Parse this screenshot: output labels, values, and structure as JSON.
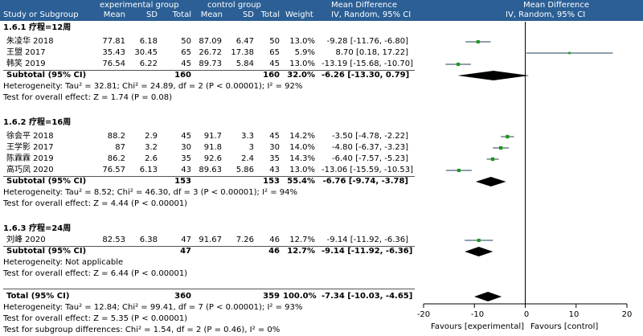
{
  "header": {
    "col_study": "Study or Subgroup",
    "exp_group": "experimental group",
    "ctrl_group": "control group",
    "mean": "Mean",
    "sd": "SD",
    "total": "Total",
    "weight": "Weight",
    "md_title": "Mean Difference",
    "md_sub": "IV, Random, 95% CI",
    "md_title2": "Mean Difference",
    "md_sub2": "IV, Random, 95% CI"
  },
  "groups": [
    {
      "title": "1.6.1 疗程=12周",
      "rows": [
        {
          "study": "朱凌华 2018",
          "em": "77.81",
          "esd": "6.18",
          "et": "50",
          "cm": "87.09",
          "csd": "6.47",
          "ct": "50",
          "w": "13.0%",
          "ci": "-9.28 [-11.76, -6.80]"
        },
        {
          "study": "王盟 2017",
          "em": "35.43",
          "esd": "30.45",
          "et": "65",
          "cm": "26.72",
          "csd": "17.38",
          "ct": "65",
          "w": "5.9%",
          "ci": "8.70 [0.18, 17.22]"
        },
        {
          "study": "韩笑 2019",
          "em": "76.54",
          "esd": "6.22",
          "et": "45",
          "cm": "89.73",
          "csd": "5.84",
          "ct": "45",
          "w": "13.0%",
          "ci": "-13.19 [-15.68, -10.70]"
        }
      ],
      "subtotal": {
        "label": "Subtotal (95% CI)",
        "et": "160",
        "ct": "160",
        "w": "32.0%",
        "ci": "-6.26 [-13.30, 0.79]"
      },
      "het": "Heterogeneity: Tau² = 32.81; Chi² = 24.89, df = 2 (P < 0.00001); I² = 92%",
      "test": "Test for overall effect: Z = 1.74 (P = 0.08)"
    },
    {
      "title": "1.6.2 疗程=16周",
      "rows": [
        {
          "study": "徐会平 2018",
          "em": "88.2",
          "esd": "2.9",
          "et": "45",
          "cm": "91.7",
          "csd": "3.3",
          "ct": "45",
          "w": "14.2%",
          "ci": "-3.50 [-4.78, -2.22]"
        },
        {
          "study": "王学影 2017",
          "em": "87",
          "esd": "3.2",
          "et": "30",
          "cm": "91.8",
          "csd": "3",
          "ct": "30",
          "w": "14.0%",
          "ci": "-4.80 [-6.37, -3.23]"
        },
        {
          "study": "陈霖霖 2019",
          "em": "86.2",
          "esd": "2.6",
          "et": "35",
          "cm": "92.6",
          "csd": "2.4",
          "ct": "35",
          "w": "14.3%",
          "ci": "-6.40 [-7.57, -5.23]"
        },
        {
          "study": "高巧凤 2020",
          "em": "76.57",
          "esd": "6.13",
          "et": "43",
          "cm": "89.63",
          "csd": "5.86",
          "ct": "43",
          "w": "13.0%",
          "ci": "-13.06 [-15.59, -10.53]"
        }
      ],
      "subtotal": {
        "label": "Subtotal (95% CI)",
        "et": "153",
        "ct": "153",
        "w": "55.4%",
        "ci": "-6.76 [-9.74, -3.78]"
      },
      "het": "Heterogeneity: Tau² = 8.52; Chi² = 46.30, df = 3 (P < 0.00001); I² = 94%",
      "test": "Test for overall effect: Z = 4.44 (P < 0.00001)"
    },
    {
      "title": "1.6.3 疗程=24周",
      "rows": [
        {
          "study": "刘峰 2020",
          "em": "82.53",
          "esd": "6.38",
          "et": "47",
          "cm": "91.67",
          "csd": "7.26",
          "ct": "46",
          "w": "12.7%",
          "ci": "-9.14 [-11.92, -6.36]"
        }
      ],
      "subtotal": {
        "label": "Subtotal (95% CI)",
        "et": "47",
        "ct": "46",
        "w": "12.7%",
        "ci": "-9.14 [-11.92, -6.36]"
      },
      "het": "Heterogeneity: Not applicable",
      "test": "Test for overall effect: Z = 6.44 (P < 0.00001)"
    }
  ],
  "total": {
    "label": "Total (95% CI)",
    "et": "360",
    "ct": "359",
    "w": "100.0%",
    "ci": "-7.34 [-10.03, -4.65]"
  },
  "total_het": "Heterogeneity: Tau² = 12.84; Chi² = 99.41, df = 7 (P < 0.00001); I² = 93%",
  "total_test": "Test for overall effect: Z = 5.35 (P < 0.00001)",
  "subgroup_test": "Test for subgroup differences: Chi² = 1.54, df = 2 (P = 0.46), I² = 0%",
  "axis": {
    "ticks": [
      "-20",
      "-10",
      "0",
      "10",
      "20"
    ],
    "favours_left": "Favours [experimental]",
    "favours_right": "Favours [control]"
  },
  "colors": {
    "header_bg": "#2b5f95",
    "study_marker": "#1a9a1a",
    "diamond": "#000000"
  },
  "chart_data": {
    "type": "forest",
    "xlim": [
      -20,
      20
    ],
    "x_ticks": [
      -20,
      -10,
      0,
      10,
      20
    ],
    "studies": [
      {
        "name": "朱凌华 2018",
        "md": -9.28,
        "lo": -11.76,
        "hi": -6.8,
        "weight": 13.0
      },
      {
        "name": "王盟 2017",
        "md": 8.7,
        "lo": 0.18,
        "hi": 17.22,
        "weight": 5.9
      },
      {
        "name": "韩笑 2019",
        "md": -13.19,
        "lo": -15.68,
        "hi": -10.7,
        "weight": 13.0
      },
      {
        "name": "徐会平 2018",
        "md": -3.5,
        "lo": -4.78,
        "hi": -2.22,
        "weight": 14.2
      },
      {
        "name": "王学影 2017",
        "md": -4.8,
        "lo": -6.37,
        "hi": -3.23,
        "weight": 14.0
      },
      {
        "name": "陈霖霖 2019",
        "md": -6.4,
        "lo": -7.57,
        "hi": -5.23,
        "weight": 14.3
      },
      {
        "name": "高巧凤 2020",
        "md": -13.06,
        "lo": -15.59,
        "hi": -10.53,
        "weight": 13.0
      },
      {
        "name": "刘峰 2020",
        "md": -9.14,
        "lo": -11.92,
        "hi": -6.36,
        "weight": 12.7
      }
    ],
    "subtotals": [
      {
        "name": "1.6.1 疗程=12周",
        "md": -6.26,
        "lo": -13.3,
        "hi": 0.79
      },
      {
        "name": "1.6.2 疗程=16周",
        "md": -6.76,
        "lo": -9.74,
        "hi": -3.78
      },
      {
        "name": "1.6.3 疗程=24周",
        "md": -9.14,
        "lo": -11.92,
        "hi": -6.36
      }
    ],
    "overall": {
      "md": -7.34,
      "lo": -10.03,
      "hi": -4.65
    }
  }
}
